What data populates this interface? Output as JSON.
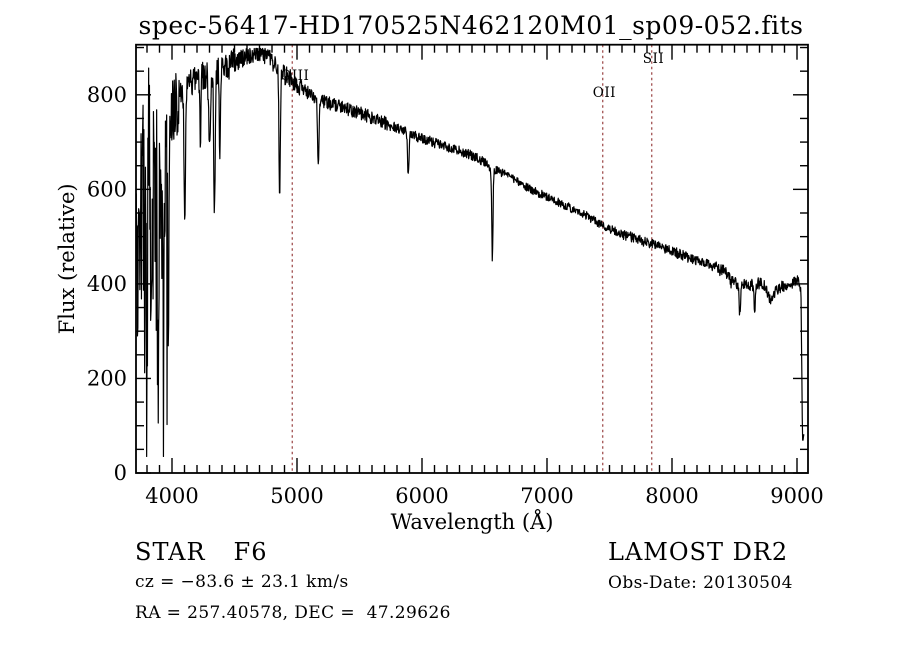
{
  "chart_data": {
    "type": "line",
    "title": "spec-56417-HD170525N462120M01_sp09-052.fits",
    "xlabel": "Wavelength (Å)",
    "ylabel": "Flux (relative)",
    "xlim": [
      3712,
      9088
    ],
    "ylim": [
      0,
      906
    ],
    "x_ticks_major": [
      4000,
      5000,
      6000,
      7000,
      8000,
      9000
    ],
    "x_tick_labels": [
      "4000",
      "5000",
      "6000",
      "7000",
      "8000",
      "9000"
    ],
    "x_minor_step": 100,
    "y_ticks_major": [
      0,
      200,
      400,
      600,
      800
    ],
    "y_tick_labels": [
      "0",
      "200",
      "400",
      "600",
      "800"
    ],
    "y_minor_step": 50,
    "grid": false,
    "colors": {
      "spectrum": "#000000",
      "frame": "#000000",
      "text": "#000000",
      "reference_line": "#9a4343"
    },
    "reference_lines": [
      {
        "label": "OIII",
        "wavelength": 4962,
        "label_dx": -12,
        "label_y": 80
      },
      {
        "label": "OII",
        "wavelength": 7446,
        "label_dx": -10,
        "label_y": 97
      },
      {
        "label": "SII",
        "wavelength": 7838,
        "label_dx": -9,
        "label_y": 63
      }
    ],
    "spectrum": {
      "end": 9055,
      "continuum": [
        [
          3712,
          430
        ],
        [
          3730,
          500
        ],
        [
          3760,
          545
        ],
        [
          3800,
          590
        ],
        [
          3850,
          635
        ],
        [
          3900,
          660
        ],
        [
          3950,
          680
        ],
        [
          4000,
          755
        ],
        [
          4050,
          800
        ],
        [
          4120,
          820
        ],
        [
          4250,
          840
        ],
        [
          4350,
          852
        ],
        [
          4450,
          862
        ],
        [
          4550,
          876
        ],
        [
          4650,
          888
        ],
        [
          4750,
          884
        ],
        [
          4830,
          862
        ],
        [
          4880,
          845
        ],
        [
          4960,
          832
        ],
        [
          5060,
          810
        ],
        [
          5160,
          792
        ],
        [
          5300,
          778
        ],
        [
          5450,
          766
        ],
        [
          5600,
          752
        ],
        [
          5800,
          730
        ],
        [
          6000,
          707
        ],
        [
          6200,
          690
        ],
        [
          6400,
          672
        ],
        [
          6560,
          646
        ],
        [
          6700,
          626
        ],
        [
          6900,
          596
        ],
        [
          7100,
          572
        ],
        [
          7300,
          547
        ],
        [
          7450,
          522
        ],
        [
          7600,
          506
        ],
        [
          7800,
          488
        ],
        [
          8000,
          470
        ],
        [
          8150,
          453
        ],
        [
          8300,
          441
        ],
        [
          8450,
          422
        ],
        [
          8520,
          402
        ],
        [
          8600,
          396
        ],
        [
          8700,
          401
        ],
        [
          8760,
          391
        ],
        [
          8800,
          376
        ],
        [
          8860,
          392
        ],
        [
          8950,
          401
        ],
        [
          9000,
          409
        ],
        [
          9020,
          398
        ],
        [
          9032,
          388
        ],
        [
          9044,
          60
        ],
        [
          9055,
          82
        ]
      ],
      "absorption_lines": [
        {
          "wavelength": 3797,
          "flux_min": 300,
          "width": 14
        },
        {
          "wavelength": 3835,
          "flux_min": 280,
          "width": 14
        },
        {
          "wavelength": 3889,
          "flux_min": 270,
          "width": 16
        },
        {
          "wavelength": 3933,
          "flux_min": 205,
          "width": 16
        },
        {
          "wavelength": 3968,
          "flux_min": 235,
          "width": 16
        },
        {
          "wavelength": 4045,
          "flux_min": 660,
          "width": 10
        },
        {
          "wavelength": 4102,
          "flux_min": 535,
          "width": 14
        },
        {
          "wavelength": 4227,
          "flux_min": 700,
          "width": 10
        },
        {
          "wavelength": 4300,
          "flux_min": 710,
          "width": 18
        },
        {
          "wavelength": 4340,
          "flux_min": 550,
          "width": 14
        },
        {
          "wavelength": 4383,
          "flux_min": 660,
          "width": 10
        },
        {
          "wavelength": 4861,
          "flux_min": 562,
          "width": 12
        },
        {
          "wavelength": 5170,
          "flux_min": 658,
          "width": 14
        },
        {
          "wavelength": 5890,
          "flux_min": 634,
          "width": 14
        },
        {
          "wavelength": 6563,
          "flux_min": 450,
          "width": 12
        },
        {
          "wavelength": 8470,
          "flux_min": 400,
          "width": 10
        },
        {
          "wavelength": 8542,
          "flux_min": 335,
          "width": 14
        },
        {
          "wavelength": 8662,
          "flux_min": 345,
          "width": 14
        },
        {
          "wavelength": 8780,
          "flux_min": 368,
          "width": 36
        }
      ],
      "noise_regions": [
        {
          "from": 3712,
          "to": 3965,
          "amplitude": 215
        },
        {
          "from": 3965,
          "to": 4060,
          "amplitude": 70
        },
        {
          "from": 4060,
          "to": 4500,
          "amplitude": 30
        },
        {
          "from": 4500,
          "to": 5050,
          "amplitude": 20
        },
        {
          "from": 5050,
          "to": 5750,
          "amplitude": 14
        },
        {
          "from": 5750,
          "to": 6600,
          "amplitude": 11
        },
        {
          "from": 6600,
          "to": 7600,
          "amplitude": 9
        },
        {
          "from": 7600,
          "to": 8350,
          "amplitude": 11
        },
        {
          "from": 8350,
          "to": 8750,
          "amplitude": 13
        },
        {
          "from": 8750,
          "to": 9032,
          "amplitude": 12
        },
        {
          "from": 9032,
          "to": 9060,
          "amplitude": 8
        }
      ]
    }
  },
  "annotations": {
    "class_label": "STAR",
    "subclass_label": "F6",
    "survey_label": "LAMOST DR2",
    "cz_line": "cz = −83.6 ± 23.1 km/s",
    "obs_date_line": "Obs-Date: 20130504",
    "radec_line": "RA = 257.40578, DEC =  47.29626"
  }
}
